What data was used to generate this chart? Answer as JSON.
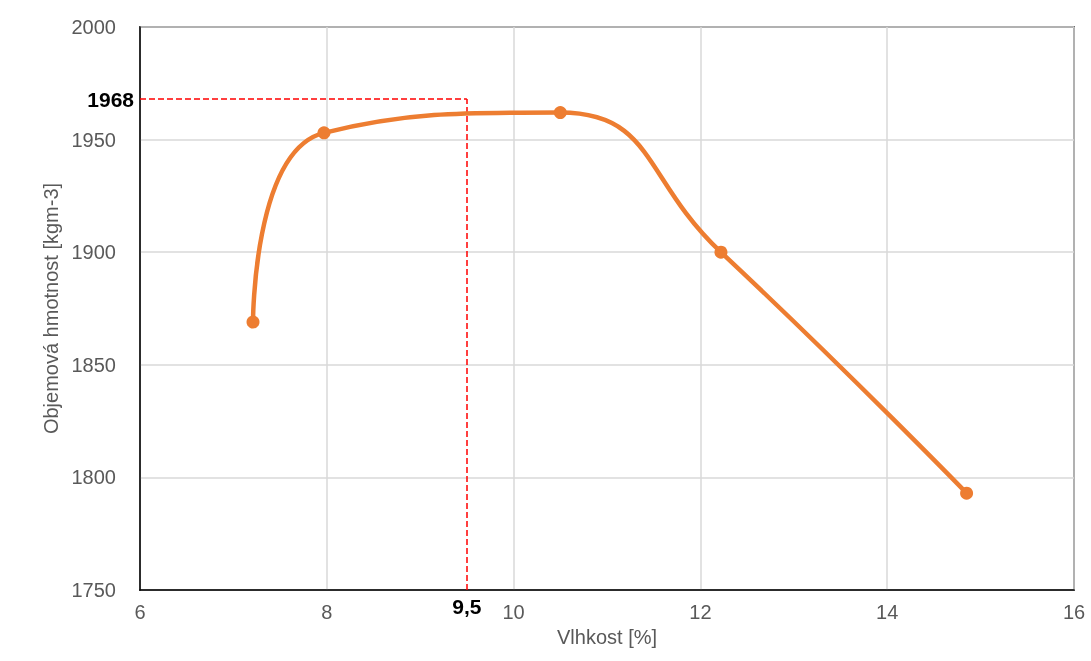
{
  "chart_data": {
    "type": "line",
    "xlabel": "Vlhkost [%]",
    "ylabel": "Objemová hmotnost [kgm-3]",
    "x": [
      7.21,
      7.97,
      10.5,
      12.22,
      14.85
    ],
    "series": [
      {
        "color": "#ed7d31",
        "values": [
          1869,
          1953,
          1962,
          1900,
          1793
        ]
      }
    ],
    "xlim": [
      6,
      16
    ],
    "xticks": [
      6,
      8,
      10,
      12,
      14,
      16
    ],
    "ylim": [
      1750,
      2000
    ],
    "yticks": [
      1750,
      1800,
      1850,
      1900,
      1950,
      2000
    ],
    "grid": true,
    "marker": "circle",
    "line_style": "solid",
    "ref_lines": [
      {
        "axis": "x",
        "value": 9.5,
        "label": "9,5",
        "color": "#ff0000",
        "line_style": "dashed"
      },
      {
        "axis": "y",
        "value": 1968,
        "label": "1968",
        "color": "#ff0000",
        "line_style": "dashed"
      }
    ]
  }
}
